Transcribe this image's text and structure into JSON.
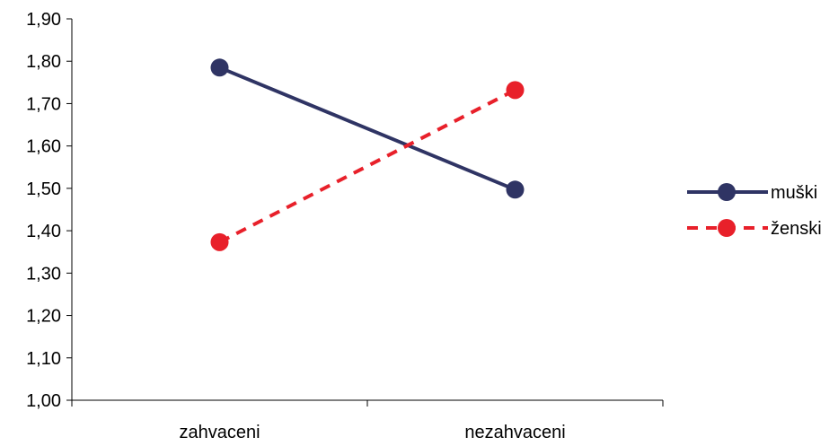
{
  "chart_data": {
    "type": "line",
    "categories": [
      "zahvaceni",
      "nezahvaceni"
    ],
    "series": [
      {
        "name": "muški",
        "values": [
          1.785,
          1.497
        ],
        "color": "#2f3464",
        "line_style": "solid",
        "marker": "circle"
      },
      {
        "name": "ženski",
        "values": [
          1.373,
          1.732
        ],
        "color": "#e8202a",
        "line_style": "dashed",
        "marker": "circle"
      }
    ],
    "y_ticks": [
      "1,00",
      "1,10",
      "1,20",
      "1,30",
      "1,40",
      "1,50",
      "1,60",
      "1,70",
      "1,80",
      "1,90"
    ],
    "ylim": [
      1.0,
      1.9
    ],
    "grid": false,
    "legend_position": "right"
  }
}
